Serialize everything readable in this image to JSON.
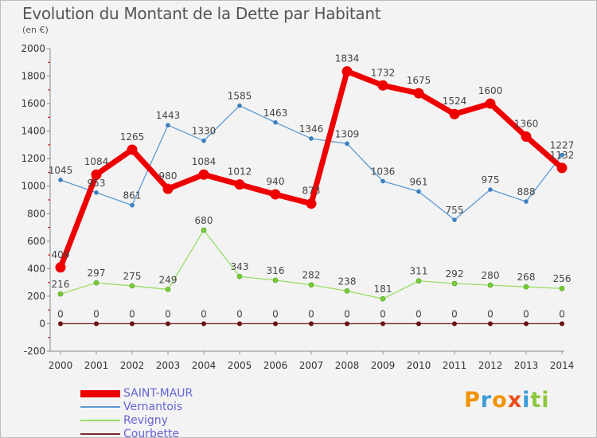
{
  "header": {
    "title": "Evolution du Montant de la Dette par Habitant",
    "subtitle": "(en €)"
  },
  "logo": {
    "text": "Proxiti",
    "letter_colors": [
      "#f29400",
      "#3b9bd8",
      "#f29400",
      "#e94e1b",
      "#3b9bd8",
      "#8dc63f",
      "#8dc63f"
    ]
  },
  "chart_data": {
    "type": "line",
    "title": "Evolution du Montant de la Dette par Habitant",
    "subtitle": "(en €)",
    "xlabel": "",
    "ylabel": "",
    "x": [
      "2000",
      "2001",
      "2002",
      "2003",
      "2004",
      "2005",
      "2006",
      "2007",
      "2008",
      "2009",
      "2010",
      "2011",
      "2012",
      "2013",
      "2014"
    ],
    "ylim": [
      -200,
      2000
    ],
    "yticks": [
      -200,
      0,
      200,
      400,
      600,
      800,
      1000,
      1200,
      1400,
      1600,
      1800,
      2000
    ],
    "grid": false,
    "legend_position": "bottom-left",
    "series": [
      {
        "name": "SAINT-MAUR",
        "color": "#ee0000",
        "values": [
          409,
          1084,
          1265,
          980,
          1084,
          1012,
          940,
          873,
          1834,
          1732,
          1675,
          1524,
          1600,
          1360,
          1132
        ]
      },
      {
        "name": "Vernantois",
        "color": "#5b9bd5",
        "values": [
          1045,
          953,
          861,
          1443,
          1330,
          1585,
          1463,
          1346,
          1309,
          1036,
          961,
          755,
          975,
          888,
          1227
        ]
      },
      {
        "name": "Revigny",
        "color": "#99dd66",
        "values": [
          216,
          297,
          275,
          249,
          680,
          343,
          316,
          282,
          238,
          181,
          311,
          292,
          280,
          268,
          256
        ]
      },
      {
        "name": "Courbette",
        "color": "#7a2a2a",
        "values": [
          0,
          0,
          0,
          0,
          0,
          0,
          0,
          0,
          0,
          0,
          0,
          0,
          0,
          0,
          0
        ]
      }
    ]
  }
}
